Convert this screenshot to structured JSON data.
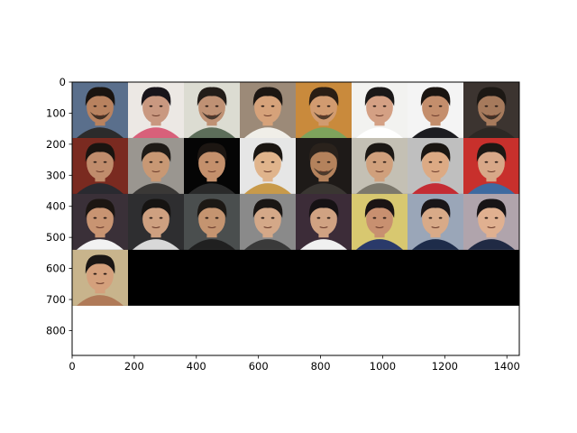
{
  "chart_data": {
    "type": "heatmap",
    "title": "",
    "xlabel": "",
    "ylabel": "",
    "xlim": [
      0,
      1440
    ],
    "ylim": [
      880,
      0
    ],
    "grid": false,
    "x_ticks": [
      0,
      200,
      400,
      600,
      800,
      1000,
      1200,
      1400
    ],
    "y_ticks": [
      0,
      100,
      200,
      300,
      400,
      500,
      600,
      700,
      800
    ],
    "image_grid": {
      "rows": 4,
      "cols": 8,
      "cell_size": 180,
      "filled_cells": 25,
      "background": "#000000"
    },
    "tiles": [
      {
        "bg": "#5a6f8c",
        "skin": "#b8825f",
        "hair": "#1a1410",
        "shirt": "#2b2b2b",
        "beard": true
      },
      {
        "bg": "#ece8e4",
        "skin": "#c99880",
        "hair": "#18141a",
        "shirt": "#d8607a",
        "beard": false
      },
      {
        "bg": "#dcdcd2",
        "skin": "#bf9174",
        "hair": "#221c18",
        "shirt": "#5d6e5a",
        "beard": true
      },
      {
        "bg": "#9c8a78",
        "skin": "#d6a27a",
        "hair": "#1c1612",
        "shirt": "#f0eee8",
        "beard": false
      },
      {
        "bg": "#c98a3c",
        "skin": "#d19b70",
        "hair": "#2a1e14",
        "shirt": "#7ea35c",
        "beard": true
      },
      {
        "bg": "#f2f2f0",
        "skin": "#d4a084",
        "hair": "#1a1818",
        "shirt": "#ffffff",
        "beard": false
      },
      {
        "bg": "#f4f4f4",
        "skin": "#c48e6c",
        "hair": "#1a1410",
        "shirt": "#1c1c20",
        "beard": false
      },
      {
        "bg": "#3c3430",
        "skin": "#a67a5c",
        "hair": "#1c1814",
        "shirt": "#2c2824",
        "beard": true
      },
      {
        "bg": "#7a2a20",
        "skin": "#c08c6c",
        "hair": "#1a1410",
        "shirt": "#2a2a30",
        "beard": false
      },
      {
        "bg": "#9a9690",
        "skin": "#c89874",
        "hair": "#1e1a16",
        "shirt": "#3a3836",
        "beard": false
      },
      {
        "bg": "#050505",
        "skin": "#c4906c",
        "hair": "#1c1612",
        "shirt": "#2a2a2a",
        "beard": false
      },
      {
        "bg": "#e6e6e6",
        "skin": "#e0b48c",
        "hair": "#1a1612",
        "shirt": "#c89a4a",
        "beard": false
      },
      {
        "bg": "#1e1a18",
        "skin": "#b4825c",
        "hair": "#2a221c",
        "shirt": "#3a3632",
        "beard": true
      },
      {
        "bg": "#c4c0b4",
        "skin": "#d0a07c",
        "hair": "#1c1814",
        "shirt": "#7c786c",
        "beard": false
      },
      {
        "bg": "#bfbfbf",
        "skin": "#dcaa84",
        "hair": "#1a1612",
        "shirt": "#c42c34",
        "beard": false
      },
      {
        "bg": "#c8302c",
        "skin": "#d8a888",
        "hair": "#1c1814",
        "shirt": "#3e6aa0",
        "beard": false
      },
      {
        "bg": "#3a3038",
        "skin": "#c89472",
        "hair": "#1c1612",
        "shirt": "#f2f2f2",
        "beard": false
      },
      {
        "bg": "#2e2e30",
        "skin": "#ceA080",
        "hair": "#161412",
        "shirt": "#d8d8d8",
        "beard": false
      },
      {
        "bg": "#4a4e4e",
        "skin": "#c49470",
        "hair": "#1c1814",
        "shirt": "#202020",
        "beard": false
      },
      {
        "bg": "#8a8a8a",
        "skin": "#d4a888",
        "hair": "#1a1614",
        "shirt": "#3a3a3a",
        "beard": false
      },
      {
        "bg": "#3c2c38",
        "skin": "#d0a282",
        "hair": "#161214",
        "shirt": "#f0f0f0",
        "beard": false
      },
      {
        "bg": "#d8c870",
        "skin": "#c89070",
        "hair": "#1a1414",
        "shirt": "#2a3a6a",
        "beard": false
      },
      {
        "bg": "#9aa6b8",
        "skin": "#d8aa88",
        "hair": "#1a1618",
        "shirt": "#1e2c4a",
        "beard": false
      },
      {
        "bg": "#b0a4ac",
        "skin": "#e0b090",
        "hair": "#181416",
        "shirt": "#202a44",
        "beard": false
      },
      {
        "bg": "#c8b48c",
        "skin": "#d4a07c",
        "hair": "#1a1614",
        "shirt": "#b07a58",
        "beard": false
      }
    ]
  }
}
